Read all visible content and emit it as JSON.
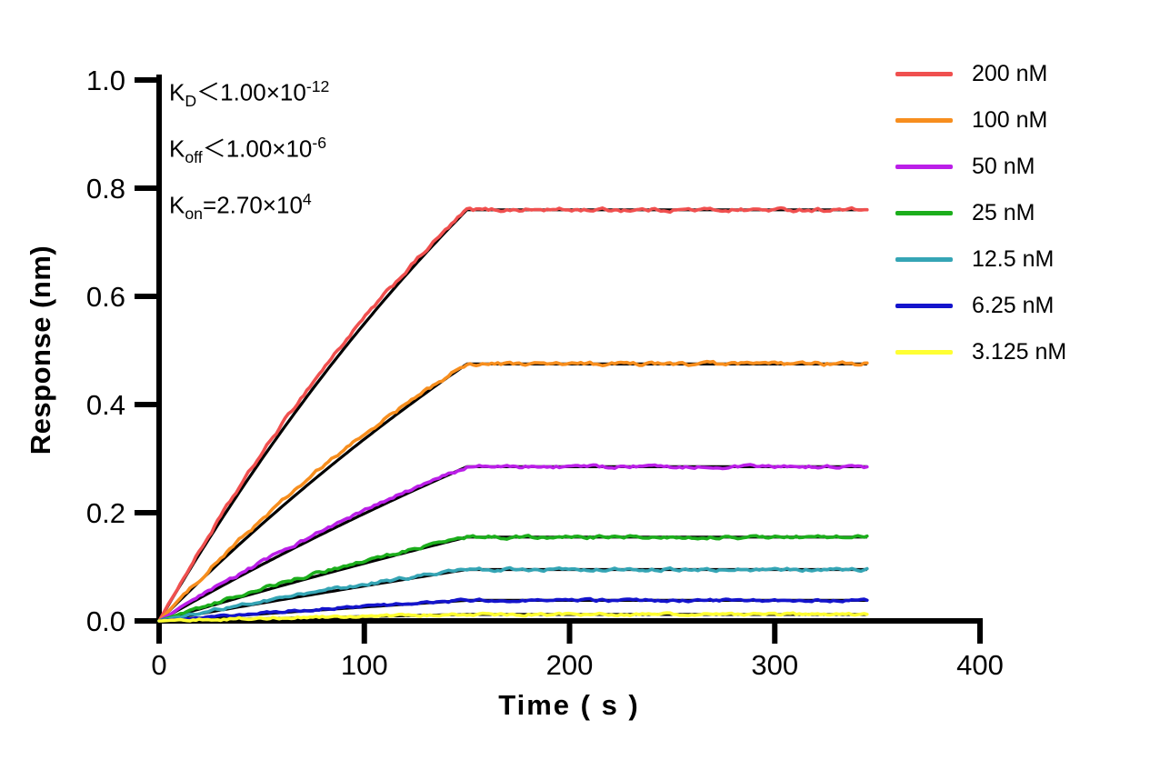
{
  "figure_background": "#FFFFFF",
  "axis_color": "#000000",
  "chart_data": {
    "type": "line",
    "title": "",
    "xlabel": "Time ( s )",
    "ylabel": "Response (nm)",
    "xlim": [
      0,
      400
    ],
    "ylim": [
      0.0,
      1.0
    ],
    "x_ticks": [
      0,
      100,
      200,
      300,
      400
    ],
    "y_ticks": [
      "0.0",
      "0.2",
      "0.4",
      "0.6",
      "0.8",
      "1.0"
    ],
    "grid": false,
    "legend_position": "right",
    "association_end_s": 150,
    "curve_end_s": 345,
    "fit_line_color": "#000000",
    "series": [
      {
        "label": "200 nM",
        "concentration_nM": 200,
        "color": "#F0504F",
        "plateau_nm": 0.76,
        "kobs": 0.0035,
        "assoc_bias": 0.012,
        "noise": 0.006
      },
      {
        "label": "100 nM",
        "concentration_nM": 100,
        "color": "#F78E1E",
        "plateau_nm": 0.475,
        "kobs": 0.0025,
        "assoc_bias": 0.01,
        "noise": 0.006
      },
      {
        "label": "50 nM",
        "concentration_nM": 50,
        "color": "#BB1FE8",
        "plateau_nm": 0.285,
        "kobs": 0.0018,
        "assoc_bias": 0.006,
        "noise": 0.005
      },
      {
        "label": "25 nM",
        "concentration_nM": 25,
        "color": "#1CAE1C",
        "plateau_nm": 0.155,
        "kobs": 0.0012,
        "assoc_bias": 0.005,
        "noise": 0.005
      },
      {
        "label": "12.5 nM",
        "concentration_nM": 12.5,
        "color": "#35A5B5",
        "plateau_nm": 0.095,
        "kobs": 0.0008,
        "assoc_bias": 0.004,
        "noise": 0.005
      },
      {
        "label": "6.25 nM",
        "concentration_nM": 6.25,
        "color": "#1414CC",
        "plateau_nm": 0.038,
        "kobs": 0.0005,
        "assoc_bias": 0.002,
        "noise": 0.004
      },
      {
        "label": "3.125 nM",
        "concentration_nM": 3.125,
        "color": "#FFFF33",
        "plateau_nm": 0.012,
        "kobs": 0.0003,
        "assoc_bias": 0.001,
        "noise": 0.004
      }
    ],
    "annotations": [
      {
        "name": "K",
        "sub": "D",
        "op": "＜",
        "mantissa": "1.00×10",
        "exponent": "-12"
      },
      {
        "name": "K",
        "sub": "off",
        "op": "＜",
        "mantissa": "1.00×10",
        "exponent": "-6"
      },
      {
        "name": "K",
        "sub": "on",
        "op": "=",
        "mantissa": "2.70×10",
        "exponent": "4"
      }
    ]
  }
}
